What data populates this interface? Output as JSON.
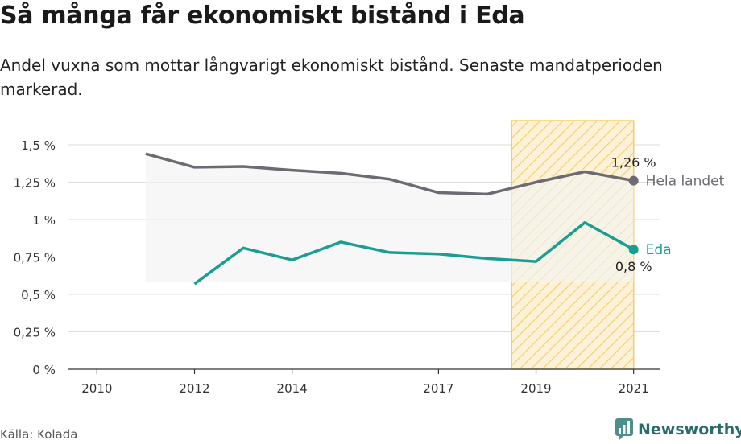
{
  "header": {
    "title": "Så många får ekonomiskt bistånd i Eda",
    "subtitle": "Andel vuxna som mottar långvarigt ekonomiskt bistånd. Senaste mandatperioden markerad."
  },
  "footer": {
    "source": "Källa: Kolada",
    "brand": "Newsworthy"
  },
  "colors": {
    "national": "#6d6a72",
    "local": "#1a9e93",
    "highlight_fill": "#fbe7b4",
    "highlight_stroke": "#f3c85a",
    "band": "#f2f2f2"
  },
  "chart_data": {
    "type": "line",
    "x": [
      2011,
      2012,
      2013,
      2014,
      2015,
      2016,
      2017,
      2018,
      2019,
      2020,
      2021
    ],
    "xticks": [
      2010,
      2012,
      2014,
      2017,
      2019,
      2021
    ],
    "xtick_labels": [
      "2010",
      "2012",
      "2014",
      "2017",
      "2019",
      "2021"
    ],
    "xlim": [
      2009.4,
      2021.55
    ],
    "ylim": [
      0,
      1.5
    ],
    "yticks": [
      0,
      0.25,
      0.5,
      0.75,
      1,
      1.25,
      1.5
    ],
    "ytick_labels": [
      "0 %",
      "0,25 %",
      "0,5 %",
      "0,75 %",
      "1 %",
      "1,25 %",
      "1,5 %"
    ],
    "highlight_period": [
      2018.5,
      2021
    ],
    "grid": true,
    "band": {
      "x": [
        2011,
        2012,
        2013,
        2014,
        2015,
        2016,
        2017,
        2018,
        2019,
        2020,
        2021
      ],
      "upper": [
        1.44,
        1.35,
        1.355,
        1.33,
        1.31,
        1.27,
        1.18,
        1.17,
        1.25,
        1.32,
        1.26
      ],
      "lower": [
        0.58,
        0.58,
        0.58,
        0.58,
        0.58,
        0.58,
        0.58,
        0.58,
        0.58,
        0.58,
        0.58
      ]
    },
    "series": [
      {
        "name": "Hela landet",
        "values": [
          1.44,
          1.35,
          1.355,
          1.33,
          1.31,
          1.27,
          1.18,
          1.17,
          1.25,
          1.32,
          1.26
        ],
        "end_label": "1,26 %"
      },
      {
        "name": "Eda",
        "values": [
          null,
          0.57,
          0.81,
          0.73,
          0.85,
          0.78,
          0.77,
          0.74,
          0.72,
          0.98,
          0.8
        ],
        "end_label": "0,8 %"
      }
    ]
  }
}
